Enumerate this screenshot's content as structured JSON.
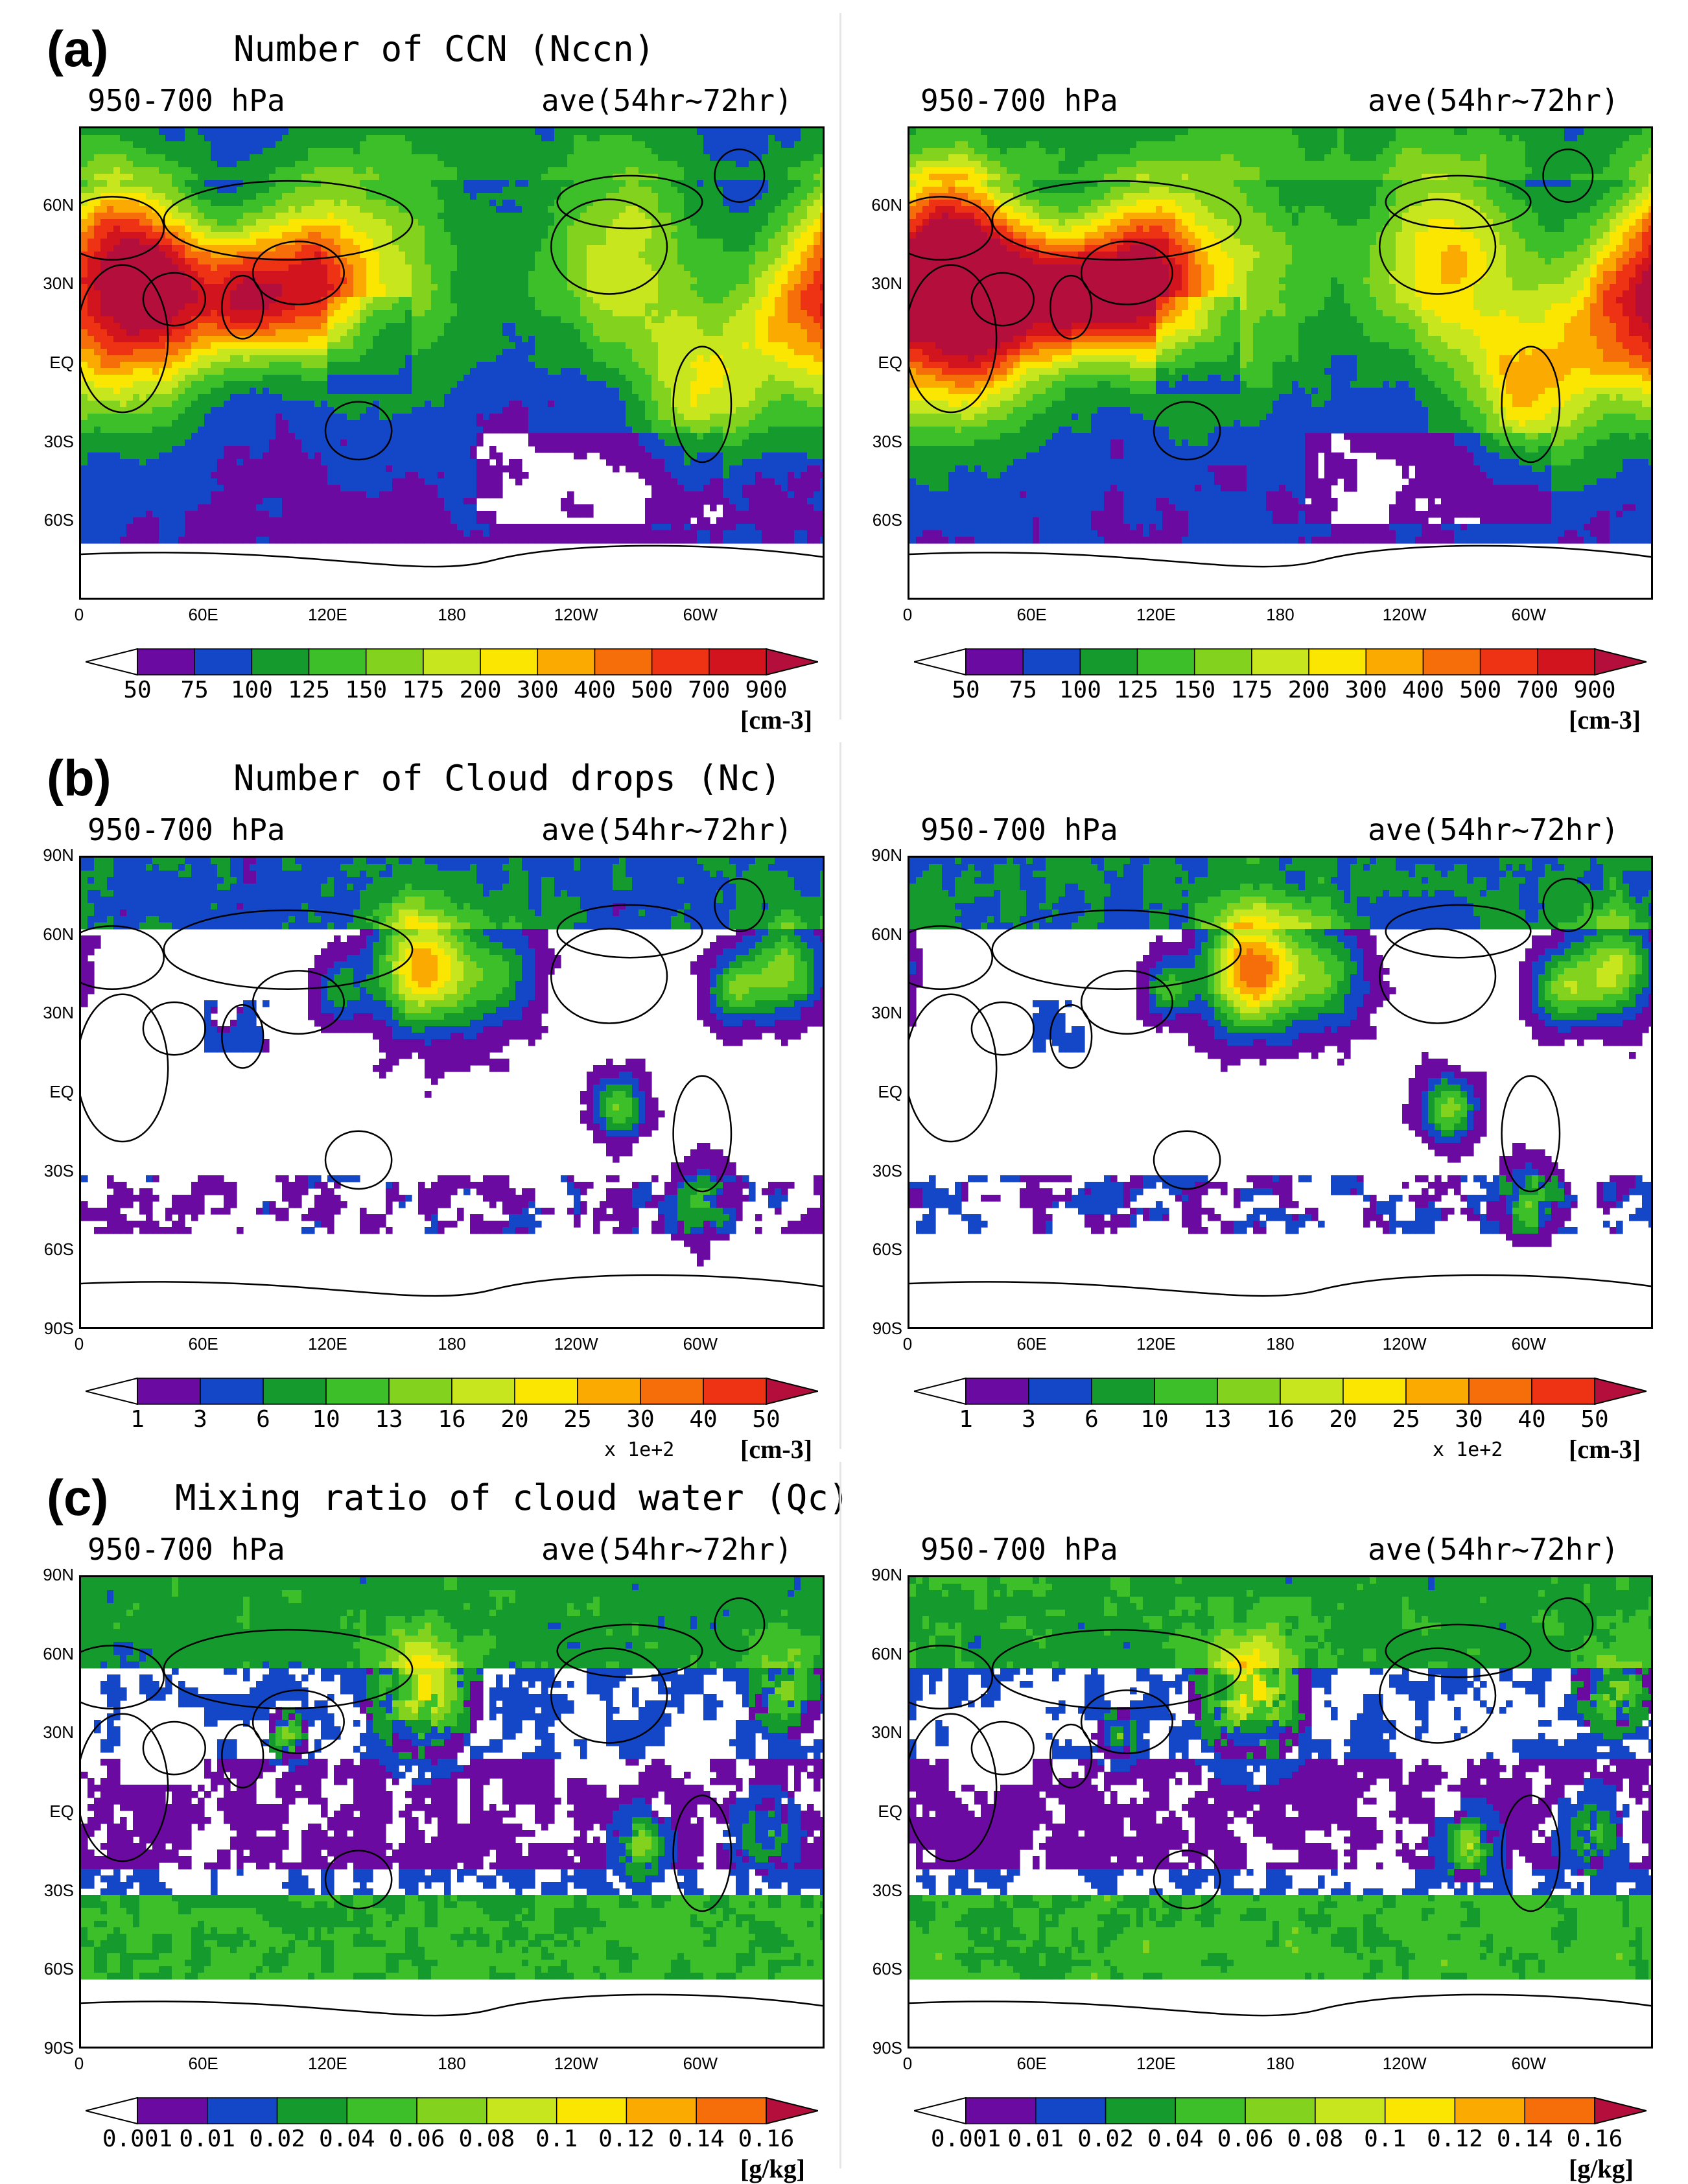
{
  "level_label": "950-700 hPa",
  "time_label": "ave(54hr~72hr)",
  "rows": [
    {
      "label": "(a)",
      "title": "Number of CCN (Nccn)",
      "colorbar_ticks": [
        "50",
        "75",
        "100",
        "125",
        "150",
        "175",
        "200",
        "300",
        "400",
        "500",
        "700",
        "900"
      ],
      "colorbar_unit": "[cm-3]",
      "colorbar_scale": "",
      "lat_ticks": [
        "60N",
        "30N",
        "EQ",
        "30S",
        "60S"
      ],
      "lon_ticks": [
        "0",
        "60E",
        "120E",
        "180",
        "120W",
        "60W"
      ]
    },
    {
      "label": "(b)",
      "title": "Number of Cloud drops (Nc)",
      "colorbar_ticks": [
        "1",
        "3",
        "6",
        "10",
        "13",
        "16",
        "20",
        "25",
        "30",
        "40",
        "50"
      ],
      "colorbar_unit": "[cm-3]",
      "colorbar_scale": "x 1e+2",
      "lat_ticks": [
        "90N",
        "60N",
        "30N",
        "EQ",
        "30S",
        "60S",
        "90S"
      ],
      "lon_ticks": [
        "0",
        "60E",
        "120E",
        "180",
        "120W",
        "60W"
      ]
    },
    {
      "label": "(c)",
      "title": "Mixing ratio of cloud water (Qc)",
      "colorbar_ticks": [
        "0.001",
        "0.01",
        "0.02",
        "0.04",
        "0.06",
        "0.08",
        "0.1",
        "0.12",
        "0.14",
        "0.16"
      ],
      "colorbar_unit": "[g/kg]",
      "colorbar_scale": "",
      "lat_ticks": [
        "90N",
        "60N",
        "30N",
        "EQ",
        "30S",
        "60S",
        "90S"
      ],
      "lon_ticks": [
        "0",
        "60E",
        "120E",
        "180",
        "120W",
        "60W"
      ]
    }
  ],
  "palette": [
    "#ffffff",
    "#6a0aa0",
    "#1446c8",
    "#159b2d",
    "#3cbf28",
    "#82d21e",
    "#c8e61e",
    "#fae600",
    "#faaa00",
    "#f56e0a",
    "#ee3214",
    "#d2141e",
    "#b40f3c"
  ],
  "chart_data": [
    {
      "type": "heatmap",
      "panel": "(a) left",
      "title": "Number of CCN (Nccn)",
      "levels": [
        50,
        75,
        100,
        125,
        150,
        175,
        200,
        300,
        400,
        500,
        700,
        900
      ],
      "unit": "cm-3",
      "lat_range": [
        "90S",
        "90N"
      ],
      "lon_range": [
        "0",
        "360"
      ]
    },
    {
      "type": "heatmap",
      "panel": "(a) right",
      "title": "Number of CCN (Nccn)",
      "levels": [
        50,
        75,
        100,
        125,
        150,
        175,
        200,
        300,
        400,
        500,
        700,
        900
      ],
      "unit": "cm-3",
      "lat_range": [
        "90S",
        "90N"
      ],
      "lon_range": [
        "0",
        "360"
      ]
    },
    {
      "type": "heatmap",
      "panel": "(b) left",
      "title": "Number of Cloud drops (Nc)",
      "levels": [
        1,
        3,
        6,
        10,
        13,
        16,
        20,
        25,
        30,
        40,
        50
      ],
      "scale": "x 1e+2",
      "unit": "cm-3",
      "lat_range": [
        "90S",
        "90N"
      ],
      "lon_range": [
        "0",
        "360"
      ]
    },
    {
      "type": "heatmap",
      "panel": "(b) right",
      "title": "Number of Cloud drops (Nc)",
      "levels": [
        1,
        3,
        6,
        10,
        13,
        16,
        20,
        25,
        30,
        40,
        50
      ],
      "scale": "x 1e+2",
      "unit": "cm-3",
      "lat_range": [
        "90S",
        "90N"
      ],
      "lon_range": [
        "0",
        "360"
      ]
    },
    {
      "type": "heatmap",
      "panel": "(c) left",
      "title": "Mixing ratio of cloud water (Qc)",
      "levels": [
        0.001,
        0.01,
        0.02,
        0.04,
        0.06,
        0.08,
        0.1,
        0.12,
        0.14,
        0.16
      ],
      "unit": "g/kg",
      "lat_range": [
        "90S",
        "90N"
      ],
      "lon_range": [
        "0",
        "360"
      ]
    },
    {
      "type": "heatmap",
      "panel": "(c) right",
      "title": "Mixing ratio of cloud water (Qc)",
      "levels": [
        0.001,
        0.01,
        0.02,
        0.04,
        0.06,
        0.08,
        0.1,
        0.12,
        0.14,
        0.16
      ],
      "unit": "g/kg",
      "lat_range": [
        "90S",
        "90N"
      ],
      "lon_range": [
        "0",
        "360"
      ]
    }
  ]
}
